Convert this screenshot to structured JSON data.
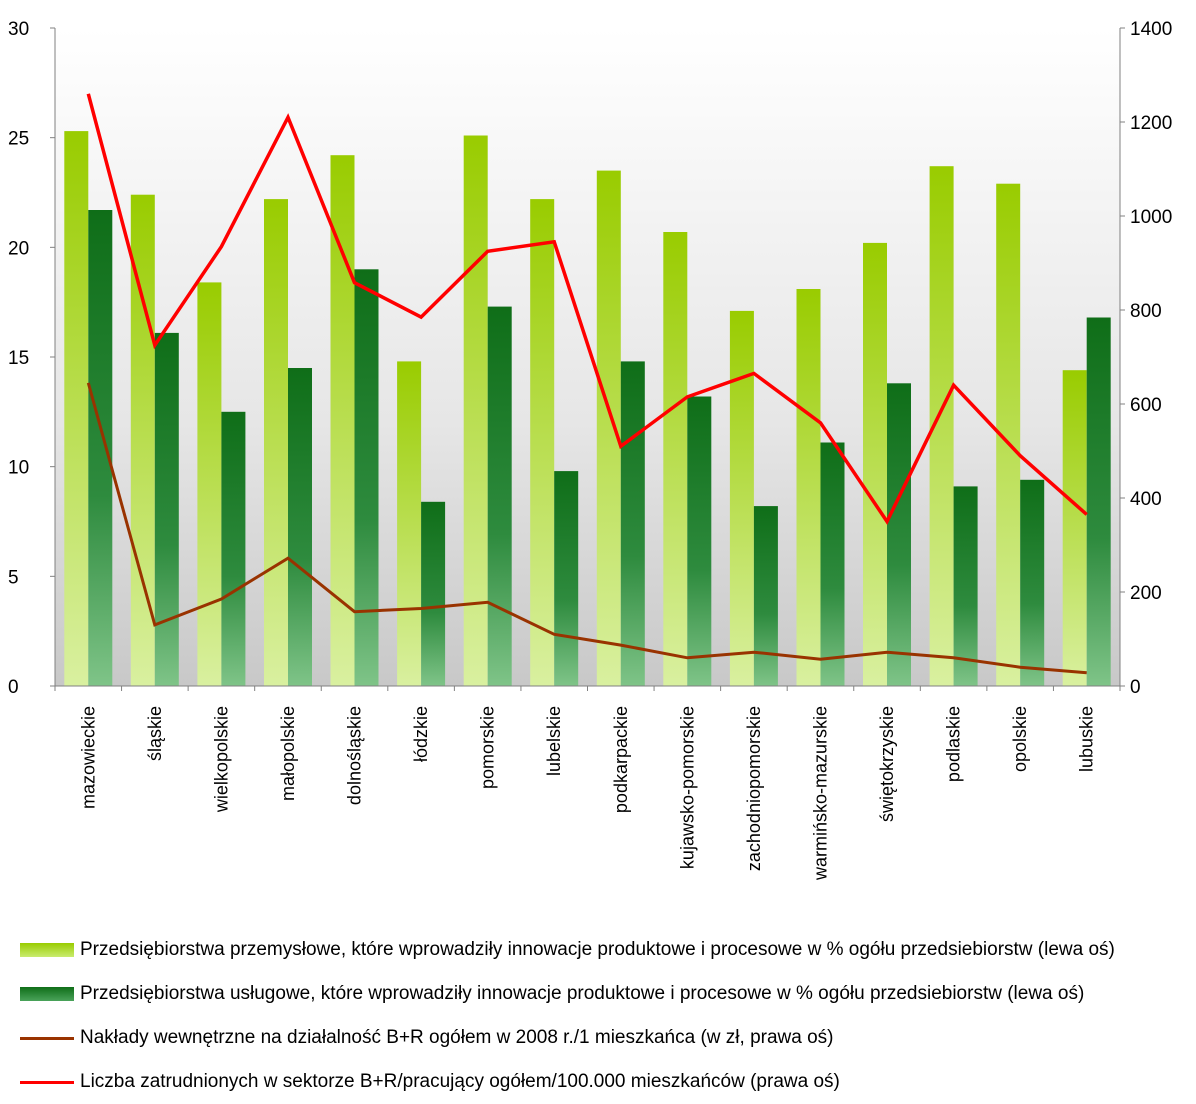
{
  "chart_data": {
    "type": "bar",
    "categories": [
      "mazowieckie",
      "śląskie",
      "wielkopolskie",
      "małopolskie",
      "dolnośląskie",
      "łódzkie",
      "pomorskie",
      "lubelskie",
      "podkarpackie",
      "kujawsko-pomorskie",
      "zachodniopomorskie",
      "warmińsko-mazurskie",
      "świętokrzyskie",
      "podlaskie",
      "opolskie",
      "lubuskie"
    ],
    "left_axis": {
      "min": 0,
      "max": 30,
      "ticks": [
        "0",
        "5",
        "10",
        "15",
        "20",
        "25",
        "30"
      ]
    },
    "right_axis": {
      "min": 0,
      "max": 1400,
      "ticks": [
        "0",
        "200",
        "400",
        "600",
        "800",
        "1000",
        "1200",
        "1400"
      ]
    },
    "series": [
      {
        "name": "Przedsiębiorstwa przemysłowe, które wprowadziły innowacje produktowe i procesowe w % ogółu przedsiebiorstw (lewa oś)",
        "kind": "bar",
        "axis": "left",
        "color": "#99cc00",
        "values": [
          25.3,
          22.4,
          18.4,
          22.2,
          24.2,
          14.8,
          25.1,
          22.2,
          23.5,
          20.7,
          17.1,
          18.1,
          20.2,
          23.7,
          22.9,
          14.4
        ]
      },
      {
        "name": "Przedsiębiorstwa usługowe, które wprowadziły innowacje produktowe i procesowe w % ogółu przedsiebiorstw (lewa oś)",
        "kind": "bar",
        "axis": "left",
        "color": "#1a7f1a",
        "values": [
          21.7,
          16.1,
          12.5,
          14.5,
          19.0,
          8.4,
          17.3,
          9.8,
          14.8,
          13.2,
          8.2,
          11.1,
          13.8,
          9.1,
          9.4,
          16.8
        ]
      },
      {
        "name": "Nakłady wewnętrzne na działalność B+R ogółem w 2008 r./1 mieszkańca (w zł, prawa oś)",
        "kind": "line",
        "axis": "right",
        "color": "#993300",
        "values": [
          645,
          130,
          185,
          272,
          158,
          165,
          178,
          110,
          87,
          60,
          72,
          57,
          72,
          60,
          40,
          28
        ]
      },
      {
        "name": "Liczba zatrudnionych w sektorze B+R/pracujący ogółem/100.000 mieszkańców (prawa oś)",
        "kind": "line",
        "axis": "right",
        "color": "#ff0000",
        "values": [
          1260,
          725,
          935,
          1210,
          858,
          785,
          925,
          945,
          510,
          615,
          665,
          560,
          350,
          640,
          490,
          365
        ]
      }
    ],
    "legend_position": "bottom",
    "grid": false
  }
}
